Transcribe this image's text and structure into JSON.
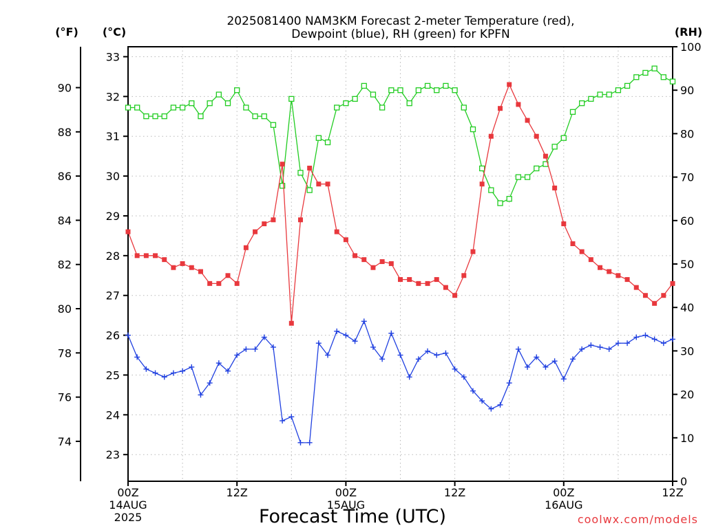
{
  "chart_data": {
    "type": "line",
    "title_line1": "2025081400 NAM3KM Forecast 2-meter Temperature (red),",
    "title_line2": "Dewpoint (blue), RH (green) for KPFN",
    "xlabel": "Forecast Time (UTC)",
    "axis_units": {
      "fahrenheit": "(°F)",
      "celsius": "(°C)",
      "rh": "(RH)"
    },
    "credit": "coolwx.com/models",
    "x_range_hours": [
      0,
      60
    ],
    "x_ticks": [
      {
        "hour": 0,
        "line1": "00Z",
        "line2": "14AUG",
        "line3": "2025"
      },
      {
        "hour": 12,
        "line1": "12Z",
        "line2": "",
        "line3": ""
      },
      {
        "hour": 24,
        "line1": "00Z",
        "line2": "15AUG",
        "line3": ""
      },
      {
        "hour": 36,
        "line1": "12Z",
        "line2": "",
        "line3": ""
      },
      {
        "hour": 48,
        "line1": "00Z",
        "line2": "16AUG",
        "line3": ""
      },
      {
        "hour": 60,
        "line1": "12Z",
        "line2": "",
        "line3": ""
      }
    ],
    "celsius_range": [
      22.33,
      33.25
    ],
    "celsius_ticks": [
      "23",
      "24",
      "25",
      "26",
      "27",
      "28",
      "29",
      "30",
      "31",
      "32",
      "33"
    ],
    "fahrenheit_ticks": [
      "74",
      "76",
      "78",
      "80",
      "82",
      "84",
      "86",
      "88",
      "90"
    ],
    "rh_range": [
      0,
      100
    ],
    "rh_ticks": [
      "0",
      "10",
      "20",
      "30",
      "40",
      "50",
      "60",
      "70",
      "80",
      "90",
      "100"
    ],
    "grid": true,
    "colors": {
      "temperature": "#e8383d",
      "dewpoint": "#2040e0",
      "rh": "#20cc20",
      "grid": "#b8b8b8"
    },
    "series": [
      {
        "name": "Temperature",
        "unit": "C",
        "values": [
          28.6,
          28.0,
          28.0,
          28.0,
          27.9,
          27.7,
          27.8,
          27.7,
          27.6,
          27.3,
          27.3,
          27.5,
          27.3,
          28.2,
          28.6,
          28.8,
          28.9,
          30.3,
          26.3,
          28.9,
          30.2,
          29.8,
          29.8,
          28.6,
          28.4,
          28.0,
          27.9,
          27.7,
          27.85,
          27.8,
          27.4,
          27.4,
          27.3,
          27.3,
          27.4,
          27.2,
          27.0,
          27.5,
          28.1,
          29.8,
          31.0,
          31.7,
          32.3,
          31.8,
          31.4,
          31.0,
          30.5,
          29.7,
          28.8,
          28.3,
          28.1,
          27.9,
          27.7,
          27.6,
          27.5,
          27.4,
          27.2,
          27.0,
          26.8,
          27.0,
          27.3
        ]
      },
      {
        "name": "Dewpoint",
        "unit": "C",
        "values": [
          26.0,
          25.45,
          25.15,
          25.05,
          24.95,
          25.05,
          25.1,
          25.2,
          24.5,
          24.8,
          25.3,
          25.1,
          25.5,
          25.65,
          25.65,
          25.95,
          25.7,
          23.85,
          23.95,
          23.3,
          23.3,
          25.8,
          25.5,
          26.1,
          26.0,
          25.85,
          26.35,
          25.7,
          25.4,
          26.05,
          25.5,
          24.95,
          25.4,
          25.6,
          25.5,
          25.55,
          25.15,
          24.95,
          24.6,
          24.35,
          24.15,
          24.25,
          24.8,
          25.65,
          25.2,
          25.45,
          25.2,
          25.35,
          24.9,
          25.4,
          25.65,
          25.75,
          25.7,
          25.65,
          25.8,
          25.8,
          25.95,
          26.0,
          25.9,
          25.8,
          25.9
        ]
      },
      {
        "name": "RH",
        "unit": "%",
        "values": [
          86,
          86,
          84,
          84,
          84,
          86,
          86,
          87,
          84,
          87,
          89,
          87,
          90,
          86,
          84,
          84,
          82,
          68,
          88,
          71,
          67,
          79,
          78,
          86,
          87,
          88,
          91,
          89,
          86,
          90,
          90,
          87,
          90,
          91,
          90,
          91,
          90,
          86,
          81,
          72,
          67,
          64,
          65,
          70,
          70,
          72,
          73,
          77,
          79,
          85,
          87,
          88,
          89,
          89,
          90,
          91,
          93,
          94,
          95,
          93,
          92
        ]
      }
    ]
  }
}
